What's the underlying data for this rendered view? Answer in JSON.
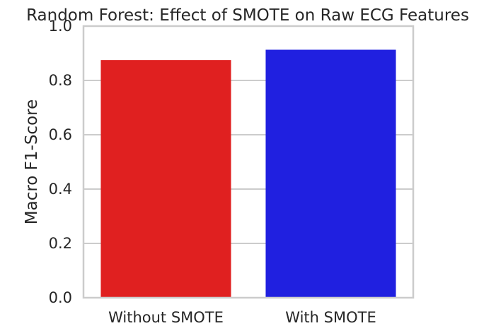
{
  "chart_data": {
    "type": "bar",
    "title": "Random Forest: Effect of SMOTE on Raw ECG Features",
    "xlabel": "",
    "ylabel": "Macro F1-Score",
    "categories": [
      "Without SMOTE",
      "With SMOTE"
    ],
    "values": [
      0.875,
      0.913
    ],
    "colors": [
      "#e02020",
      "#2020e0"
    ],
    "ylim": [
      0,
      1.0
    ],
    "yticks": [
      0.0,
      0.2,
      0.4,
      0.6,
      0.8,
      1.0
    ],
    "ytick_labels": [
      "0.0",
      "0.2",
      "0.4",
      "0.6",
      "0.8",
      "1.0"
    ],
    "grid": "horizontal",
    "style": {
      "grid_color": "#cccccc",
      "frame_color": "#cccccc"
    }
  }
}
